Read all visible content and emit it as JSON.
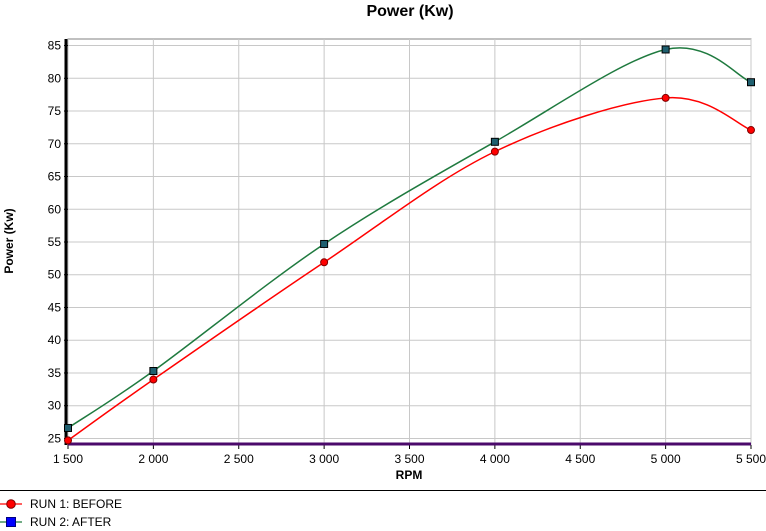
{
  "chart_data": {
    "type": "line",
    "title": "Power (Kw)",
    "xlabel": "RPM",
    "ylabel": "Power (Kw)",
    "xlim": [
      1500,
      5500
    ],
    "ylim": [
      24,
      86
    ],
    "x_ticks": [
      1500,
      2000,
      2500,
      3000,
      3500,
      4000,
      4500,
      5000,
      5500
    ],
    "x_tick_labels": [
      "1 500",
      "2 000",
      "2 500",
      "3 000",
      "3 500",
      "4 000",
      "4 500",
      "5 000",
      "5 500"
    ],
    "y_ticks": [
      25,
      30,
      35,
      40,
      45,
      50,
      55,
      60,
      65,
      70,
      75,
      80,
      85
    ],
    "grid": true,
    "legend_position": "bottom-left",
    "series": [
      {
        "name": "RUN 1: BEFORE",
        "color": "#ff0000",
        "marker": "circle",
        "marker_color": "#ff0000",
        "x": [
          1500,
          2000,
          3000,
          4000,
          5000,
          5500
        ],
        "values": [
          24.7,
          34.0,
          51.9,
          68.8,
          77.0,
          72.1
        ]
      },
      {
        "name": "RUN 2: AFTER",
        "color": "#1f7a3f",
        "marker": "square",
        "marker_color": "#0000ff",
        "x": [
          1500,
          2000,
          3000,
          4000,
          5000,
          5500
        ],
        "values": [
          26.6,
          35.3,
          54.7,
          70.3,
          84.4,
          79.4
        ]
      }
    ]
  }
}
